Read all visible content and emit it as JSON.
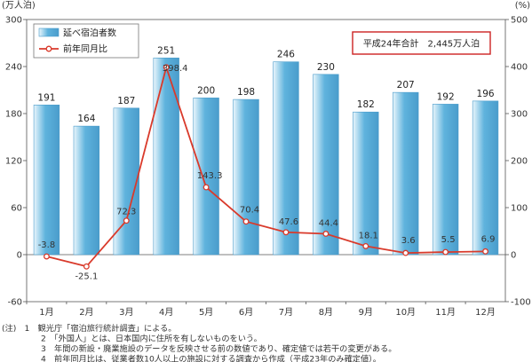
{
  "chart_data": {
    "type": "bar",
    "categories": [
      "1月",
      "2月",
      "3月",
      "4月",
      "5月",
      "6月",
      "7月",
      "8月",
      "9月",
      "10月",
      "11月",
      "12月"
    ],
    "series": [
      {
        "name": "延べ宿泊者数",
        "type": "bar",
        "axis": "left",
        "values": [
          191,
          164,
          187,
          251,
          200,
          198,
          246,
          230,
          182,
          207,
          192,
          196
        ]
      },
      {
        "name": "前年同月比",
        "type": "line",
        "axis": "right",
        "values": [
          -3.8,
          -25.1,
          72.3,
          398.4,
          143.3,
          70.4,
          47.6,
          44.4,
          18.1,
          3.6,
          5.5,
          6.9
        ]
      }
    ],
    "y_left": {
      "unit": "(万人泊)",
      "ylim": [
        -60,
        300
      ],
      "ticks": [
        -60,
        0,
        60,
        120,
        180,
        240,
        300
      ]
    },
    "y_right": {
      "unit": "(%)",
      "ylim": [
        -100,
        500
      ],
      "ticks": [
        -100,
        0,
        100,
        200,
        300,
        400,
        500
      ]
    },
    "bar_labels": [
      "191",
      "164",
      "187",
      "251",
      "200",
      "198",
      "246",
      "230",
      "182",
      "207",
      "192",
      "196"
    ],
    "point_labels": [
      "-3.8",
      "-25.1",
      "72.3",
      "398.4",
      "143.3",
      "70.4",
      "47.6",
      "44.4",
      "18.1",
      "3.6",
      "5.5",
      "6.9"
    ],
    "total_box": "平成24年合計　2,445万人泊",
    "legend_position": "top-left",
    "grid": false,
    "colors": {
      "bar_top": "#eaf6fc",
      "bar_bottom": "#5fb3dd",
      "bar_edge": "#4a9ccb",
      "line": "#d93a2b",
      "point_fill": "#ffffff",
      "total_border": "#cc2222"
    }
  },
  "notes": [
    "(注)　1　観光庁「宿泊旅行統計調査」による。",
    "2　「外国人」とは、日本国内に住所を有しないものをいう。",
    "3　年間の新設・廃業施設のデータを反映させる前の数値であり、確定値では若干の変更がある。",
    "4　前年同月比は、従業者数10人以上の施設に対する調査から作成（平成23年のみ確定値）。"
  ]
}
